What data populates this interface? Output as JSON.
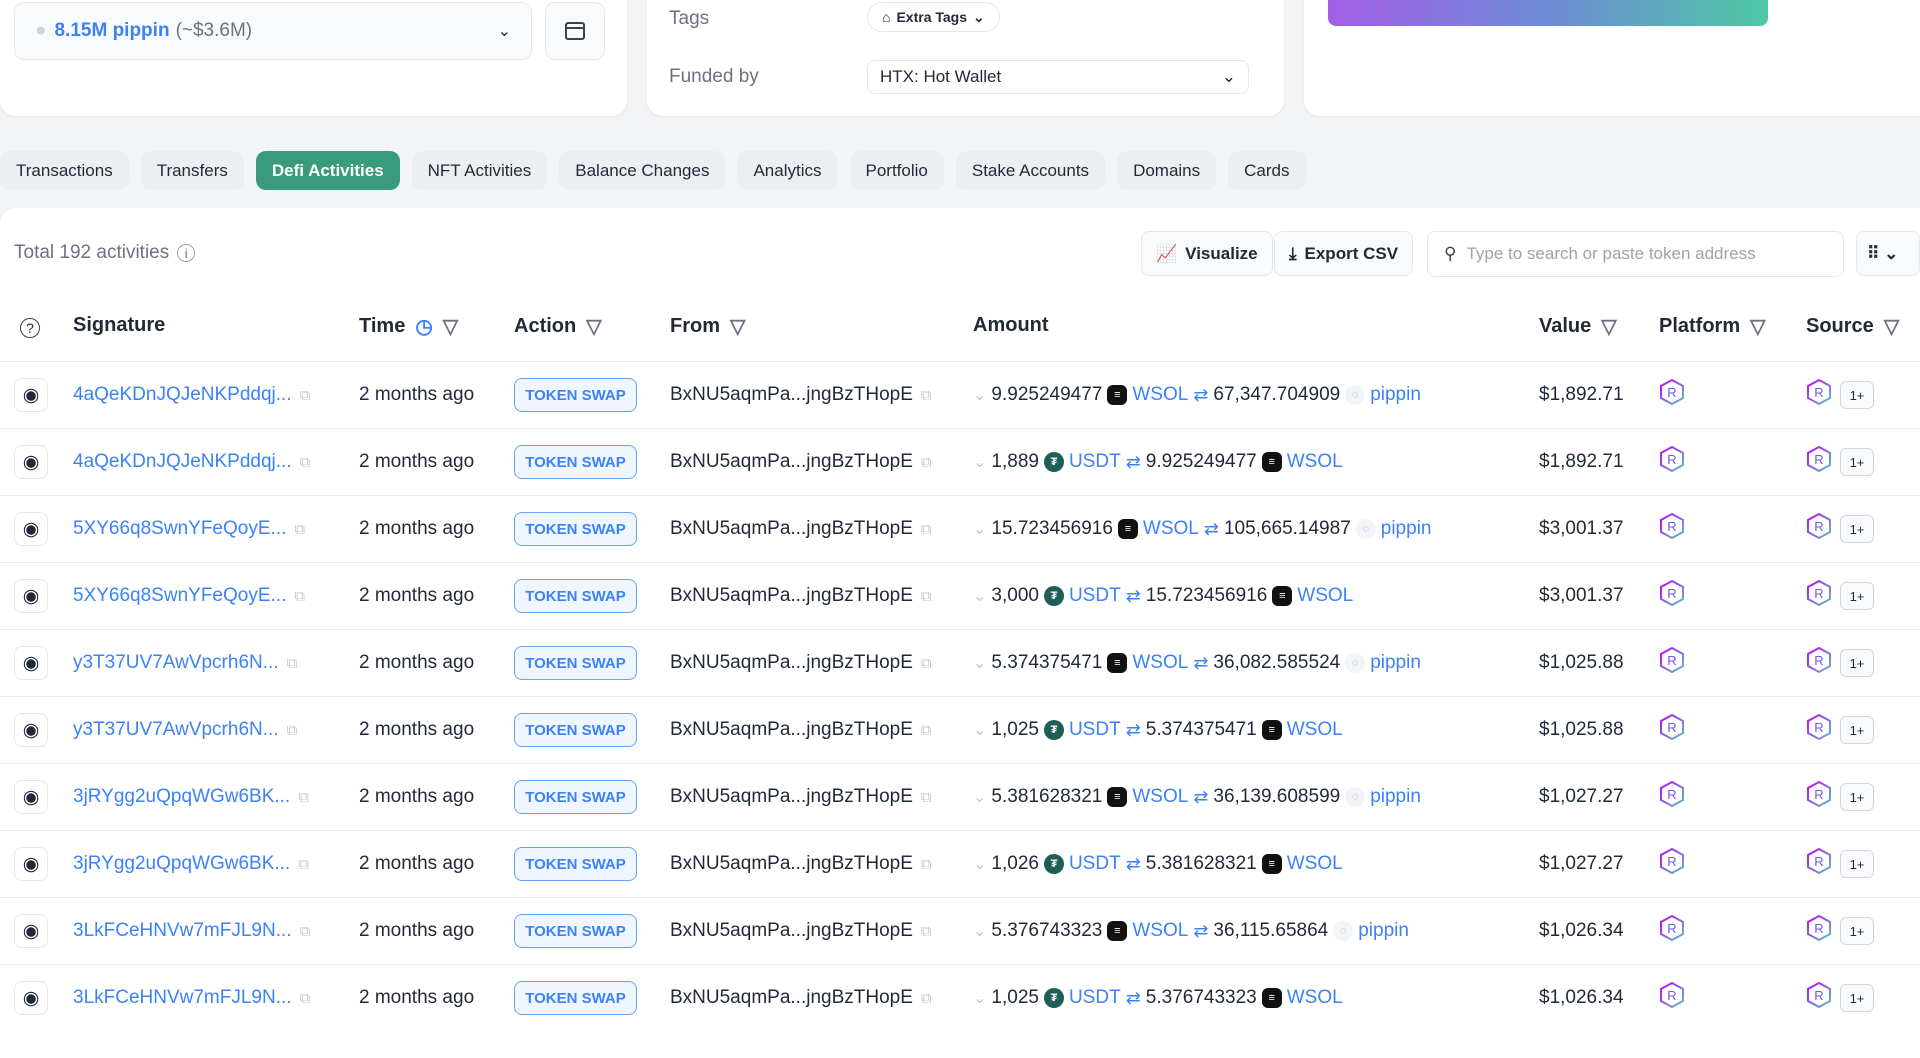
{
  "token_selector": {
    "amount": "8.15M pippin",
    "usd": "(~$3.6M)"
  },
  "info": {
    "tags_label": "Tags",
    "extra_tags": "Extra Tags",
    "funded_by_label": "Funded by",
    "funded_by_value": "HTX: Hot Wallet"
  },
  "tabs": [
    "Transactions",
    "Transfers",
    "Defi Activities",
    "NFT Activities",
    "Balance Changes",
    "Analytics",
    "Portfolio",
    "Stake Accounts",
    "Domains",
    "Cards"
  ],
  "active_tab": "Defi Activities",
  "toolbar": {
    "total": "Total 192 activities",
    "visualize": "Visualize",
    "export": "Export CSV",
    "search_placeholder": "Type to search or paste token address"
  },
  "columns": {
    "signature": "Signature",
    "time": "Time",
    "action": "Action",
    "from": "From",
    "amount": "Amount",
    "value": "Value",
    "platform": "Platform",
    "source": "Source"
  },
  "colors": {
    "accent": "#3a9b7c",
    "link": "#3b82f6"
  },
  "rows": [
    {
      "sig": "4aQeKDnJQJeNKPddqj...",
      "time": "2 months ago",
      "action": "TOKEN SWAP",
      "from": "BxNU5aqmPa...jngBzTHopE",
      "in_amt": "9.925249477",
      "in_tok": "WSOL",
      "out_amt": "67,347.704909",
      "out_tok": "pippin",
      "value": "$1,892.71",
      "more": "1+"
    },
    {
      "sig": "4aQeKDnJQJeNKPddqj...",
      "time": "2 months ago",
      "action": "TOKEN SWAP",
      "from": "BxNU5aqmPa...jngBzTHopE",
      "in_amt": "1,889",
      "in_tok": "USDT",
      "out_amt": "9.925249477",
      "out_tok": "WSOL",
      "value": "$1,892.71",
      "more": "1+"
    },
    {
      "sig": "5XY66q8SwnYFeQoyE...",
      "time": "2 months ago",
      "action": "TOKEN SWAP",
      "from": "BxNU5aqmPa...jngBzTHopE",
      "in_amt": "15.723456916",
      "in_tok": "WSOL",
      "out_amt": "105,665.14987",
      "out_tok": "pippin",
      "value": "$3,001.37",
      "more": "1+"
    },
    {
      "sig": "5XY66q8SwnYFeQoyE...",
      "time": "2 months ago",
      "action": "TOKEN SWAP",
      "from": "BxNU5aqmPa...jngBzTHopE",
      "in_amt": "3,000",
      "in_tok": "USDT",
      "out_amt": "15.723456916",
      "out_tok": "WSOL",
      "value": "$3,001.37",
      "more": "1+"
    },
    {
      "sig": "y3T37UV7AwVpcrh6N...",
      "time": "2 months ago",
      "action": "TOKEN SWAP",
      "from": "BxNU5aqmPa...jngBzTHopE",
      "in_amt": "5.374375471",
      "in_tok": "WSOL",
      "out_amt": "36,082.585524",
      "out_tok": "pippin",
      "value": "$1,025.88",
      "more": "1+"
    },
    {
      "sig": "y3T37UV7AwVpcrh6N...",
      "time": "2 months ago",
      "action": "TOKEN SWAP",
      "from": "BxNU5aqmPa...jngBzTHopE",
      "in_amt": "1,025",
      "in_tok": "USDT",
      "out_amt": "5.374375471",
      "out_tok": "WSOL",
      "value": "$1,025.88",
      "more": "1+"
    },
    {
      "sig": "3jRYgg2uQpqWGw6BK...",
      "time": "2 months ago",
      "action": "TOKEN SWAP",
      "from": "BxNU5aqmPa...jngBzTHopE",
      "in_amt": "5.381628321",
      "in_tok": "WSOL",
      "out_amt": "36,139.608599",
      "out_tok": "pippin",
      "value": "$1,027.27",
      "more": "1+"
    },
    {
      "sig": "3jRYgg2uQpqWGw6BK...",
      "time": "2 months ago",
      "action": "TOKEN SWAP",
      "from": "BxNU5aqmPa...jngBzTHopE",
      "in_amt": "1,026",
      "in_tok": "USDT",
      "out_amt": "5.381628321",
      "out_tok": "WSOL",
      "value": "$1,027.27",
      "more": "1+"
    },
    {
      "sig": "3LkFCeHNVw7mFJL9N...",
      "time": "2 months ago",
      "action": "TOKEN SWAP",
      "from": "BxNU5aqmPa...jngBzTHopE",
      "in_amt": "5.376743323",
      "in_tok": "WSOL",
      "out_amt": "36,115.65864",
      "out_tok": "pippin",
      "value": "$1,026.34",
      "more": "1+"
    },
    {
      "sig": "3LkFCeHNVw7mFJL9N...",
      "time": "2 months ago",
      "action": "TOKEN SWAP",
      "from": "BxNU5aqmPa...jngBzTHopE",
      "in_amt": "1,025",
      "in_tok": "USDT",
      "out_amt": "5.376743323",
      "out_tok": "WSOL",
      "value": "$1,026.34",
      "more": "1+"
    }
  ]
}
